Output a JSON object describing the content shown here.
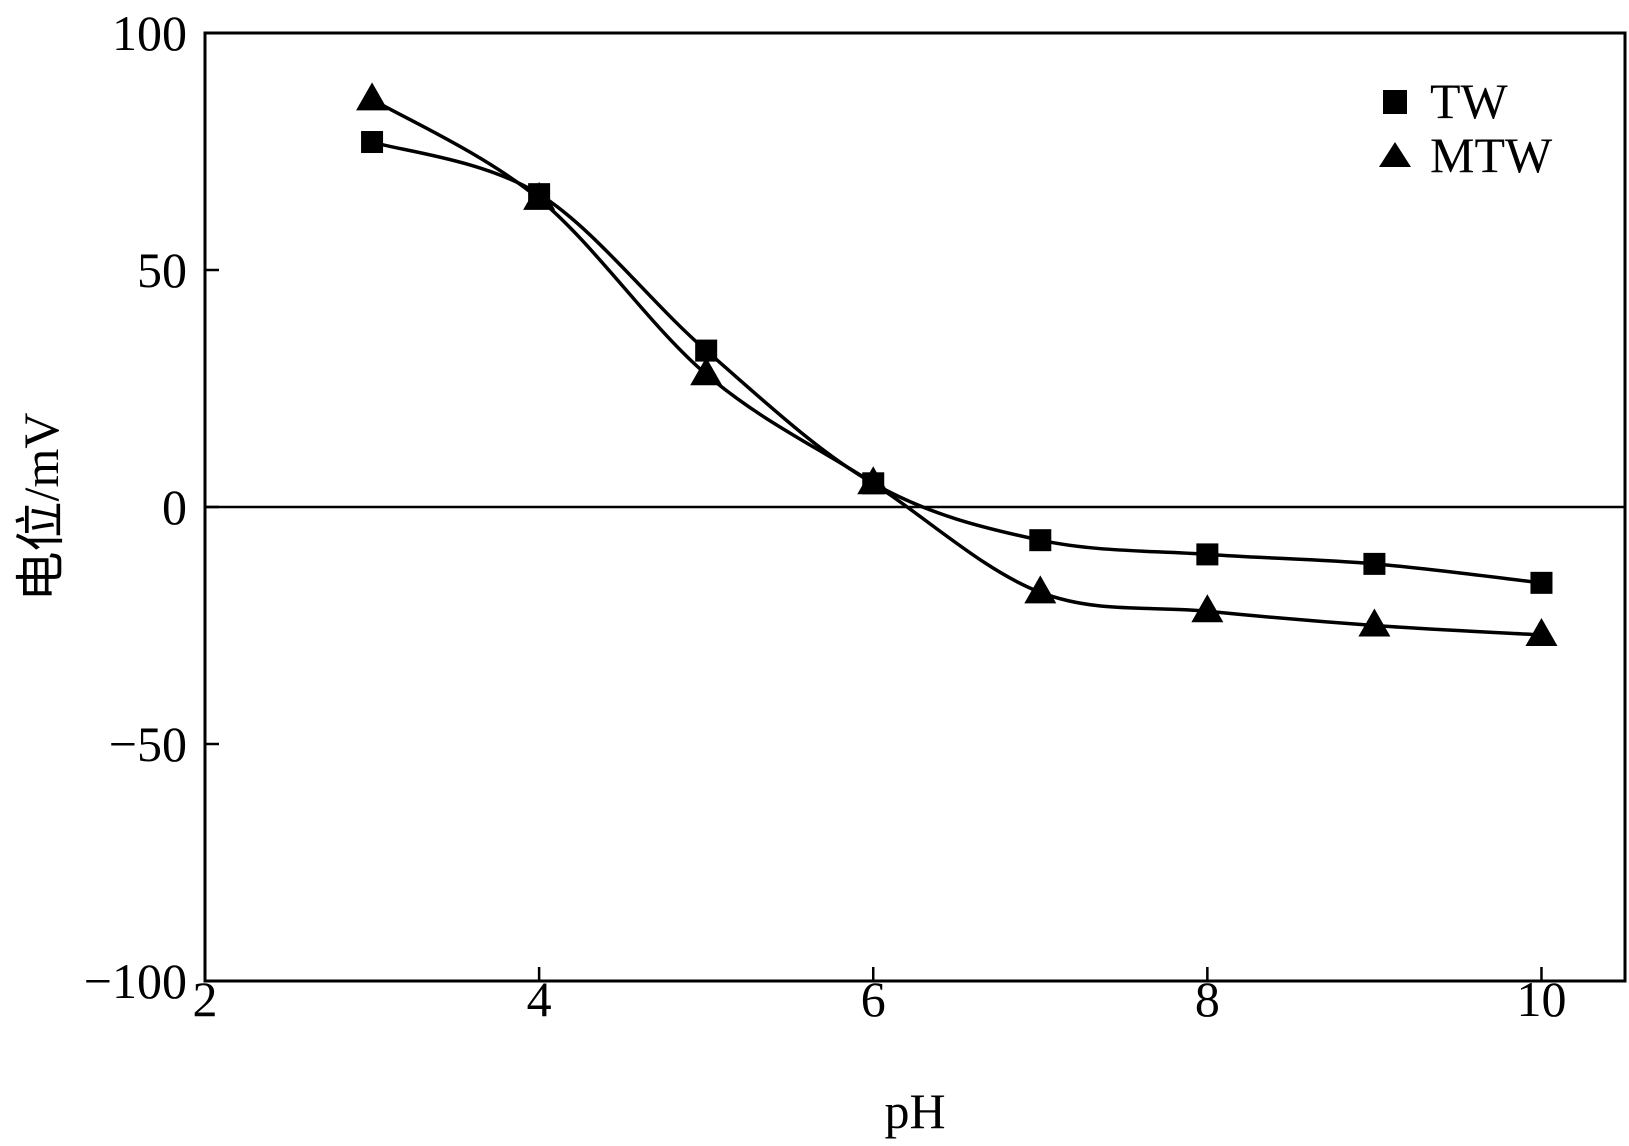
{
  "chart_data": {
    "type": "line",
    "xlabel": "pH",
    "ylabel": "电位/mV",
    "xlim": [
      2,
      10.5
    ],
    "ylim": [
      -100,
      100
    ],
    "xticks": [
      2,
      4,
      6,
      8,
      10
    ],
    "yticks": [
      -100,
      -50,
      0,
      50,
      100
    ],
    "xtick_labels": [
      "2",
      "4",
      "6",
      "8",
      "10"
    ],
    "ytick_labels": [
      "−100",
      "−50",
      "0",
      "50",
      "100"
    ],
    "zero_line": true,
    "grid": false,
    "legend_position": "top-right",
    "series": [
      {
        "name": "TW",
        "marker": "square",
        "x": [
          3,
          4,
          5,
          6,
          7,
          8,
          9,
          10
        ],
        "y": [
          77,
          66,
          33,
          5,
          -7,
          -10,
          -12,
          -16
        ]
      },
      {
        "name": "MTW",
        "marker": "triangle",
        "x": [
          3,
          4,
          5,
          6,
          7,
          8,
          9,
          10
        ],
        "y": [
          86,
          65,
          28,
          5,
          -18,
          -22,
          -25,
          -27
        ]
      }
    ]
  }
}
